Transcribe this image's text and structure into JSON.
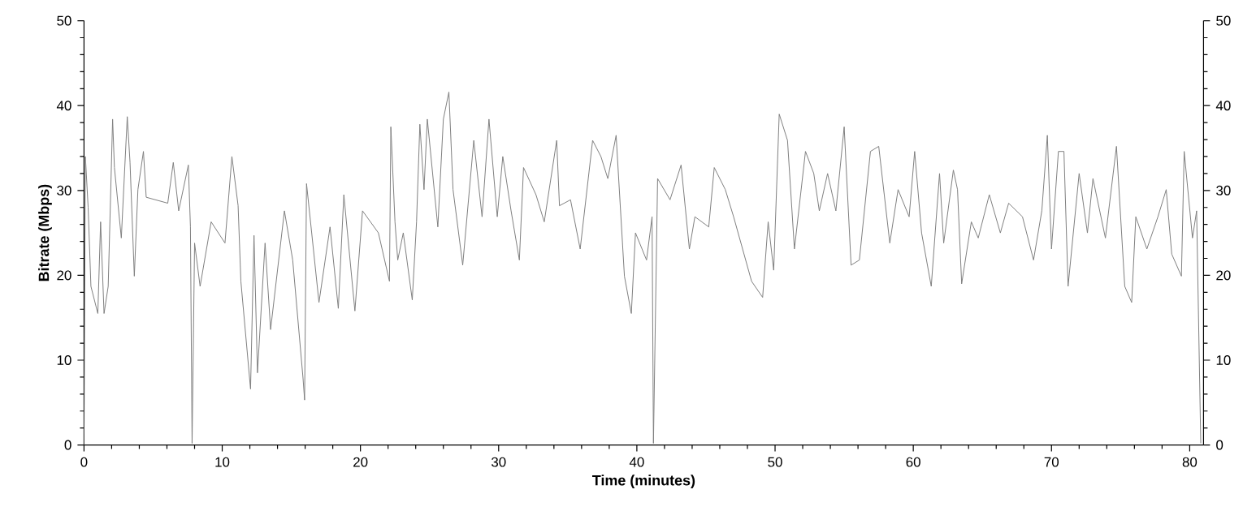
{
  "chart_data": {
    "type": "line",
    "xlabel": "Time (minutes)",
    "ylabel": "Bitrate (Mbps)",
    "x": [
      0,
      0.1,
      0.3,
      0.5,
      1.0,
      1.2,
      1.45,
      1.75,
      2.07,
      2.2,
      2.7,
      3.13,
      3.33,
      3.64,
      3.9,
      4.3,
      4.5,
      6.06,
      6.46,
      6.85,
      7.55,
      7.7,
      7.82,
      8.0,
      8.4,
      9.2,
      10.2,
      10.7,
      11.15,
      11.35,
      12.05,
      12.3,
      12.55,
      13.1,
      13.5,
      14.5,
      15.1,
      15.85,
      15.96,
      16.1,
      17.0,
      17.8,
      18.4,
      18.8,
      19.6,
      20.15,
      21.3,
      22.1,
      22.2,
      22.5,
      22.7,
      23.1,
      23.75,
      24.06,
      24.3,
      24.6,
      24.84,
      25.6,
      26.0,
      26.4,
      26.7,
      27.4,
      28.2,
      28.8,
      29.3,
      29.9,
      30.3,
      30.9,
      31.5,
      31.8,
      32.7,
      33.3,
      34.2,
      34.4,
      35.2,
      35.9,
      36.8,
      37.4,
      37.9,
      38.5,
      39.1,
      39.6,
      39.9,
      40.7,
      41.1,
      41.2,
      41.5,
      42.4,
      43.2,
      43.8,
      44.2,
      45.2,
      45.6,
      46.4,
      47.0,
      48.3,
      49.1,
      49.5,
      49.9,
      50.3,
      50.9,
      51.4,
      52.2,
      52.8,
      53.2,
      53.8,
      54.4,
      55.0,
      55.5,
      56.1,
      56.9,
      57.5,
      58.3,
      58.9,
      59.7,
      60.1,
      60.6,
      61.3,
      61.9,
      62.2,
      62.9,
      63.2,
      63.5,
      64.2,
      64.7,
      65.5,
      66.3,
      66.9,
      67.9,
      68.7,
      69.3,
      69.7,
      70.0,
      70.5,
      70.9,
      71.2,
      72.0,
      72.6,
      73.0,
      73.9,
      74.7,
      75.3,
      75.8,
      76.1,
      76.9,
      77.7,
      78.3,
      78.7,
      79.4,
      79.6,
      80.2,
      80.5,
      80.8
    ],
    "series": [
      {
        "color": "#808080",
        "values": [
          0,
          34,
          28,
          18.7,
          15.5,
          26.3,
          15.5,
          18.7,
          38.4,
          32.7,
          24.4,
          38.7,
          33.3,
          19.9,
          30.1,
          34.6,
          29.2,
          28.5,
          33.3,
          27.6,
          33,
          25.7,
          0.2,
          23.8,
          18.7,
          26.3,
          23.8,
          34,
          28.2,
          19.3,
          6.6,
          24.7,
          8.5,
          23.8,
          13.6,
          27.6,
          21.8,
          7.8,
          5.3,
          30.8,
          16.8,
          25.7,
          16.1,
          29.5,
          15.8,
          27.6,
          25,
          19.3,
          37.5,
          26.3,
          21.8,
          25,
          17.1,
          26.3,
          37.8,
          30.1,
          38.4,
          25.7,
          38.4,
          41.6,
          30.1,
          21.2,
          35.9,
          26.9,
          38.4,
          26.9,
          34,
          27.6,
          21.8,
          32.7,
          29.5,
          26.3,
          35.9,
          28.2,
          28.9,
          23.1,
          35.9,
          34,
          31.4,
          36.5,
          19.9,
          15.5,
          25,
          21.8,
          26.9,
          0.2,
          31.4,
          28.9,
          33,
          23.1,
          26.9,
          25.7,
          32.7,
          30.1,
          26.9,
          19.3,
          17.4,
          26.3,
          20.6,
          39,
          35.9,
          23.1,
          34.6,
          32,
          27.6,
          32,
          27.6,
          37.5,
          21.2,
          21.8,
          34.6,
          35.2,
          23.8,
          30.1,
          26.9,
          34.6,
          25,
          18.7,
          32,
          23.8,
          32.4,
          30.1,
          19,
          26.3,
          24.4,
          29.5,
          25,
          28.5,
          26.9,
          21.8,
          27.6,
          36.5,
          23.1,
          34.6,
          34.6,
          18.7,
          32,
          25,
          31.4,
          24.4,
          35.2,
          18.7,
          16.8,
          26.9,
          23.1,
          26.9,
          30.1,
          22.5,
          19.9,
          34.6,
          24.4,
          27.6,
          0.2
        ]
      }
    ],
    "xlim": [
      0,
      81
    ],
    "xticks": [
      0,
      10,
      20,
      30,
      40,
      50,
      60,
      70,
      80
    ],
    "ylim": [
      0,
      50
    ],
    "yticks": [
      0,
      10,
      20,
      30,
      40,
      50
    ],
    "y2lim": [
      0,
      50
    ],
    "y2ticks": [
      0,
      10,
      20,
      30,
      40,
      50
    ],
    "grid": false,
    "legend": false,
    "marker": "none",
    "line_style": "solid"
  }
}
